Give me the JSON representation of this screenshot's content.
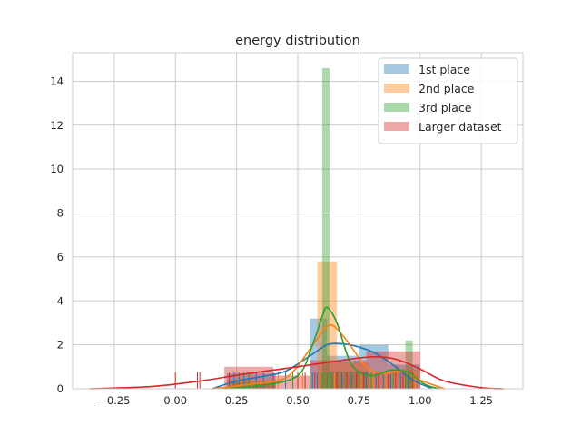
{
  "chart_data": {
    "type": "histogram-kde-rug",
    "title": "energy distribution",
    "xlabel": "",
    "ylabel": "",
    "xlim": [
      -0.42,
      1.42
    ],
    "ylim": [
      0,
      15.3
    ],
    "xticks": [
      -0.25,
      0.0,
      0.25,
      0.5,
      0.75,
      1.0,
      1.25
    ],
    "xtick_labels": [
      "−0.25",
      "0.00",
      "0.25",
      "0.50",
      "0.75",
      "1.00",
      "1.25"
    ],
    "yticks": [
      0,
      2,
      4,
      6,
      8,
      10,
      12,
      14
    ],
    "ytick_labels": [
      "0",
      "2",
      "4",
      "6",
      "8",
      "10",
      "12",
      "14"
    ],
    "grid": true,
    "legend_position": "top-right",
    "series": [
      {
        "name": "1st place",
        "color": "#1f77b4",
        "bins": [
          [
            0.21,
            0.41,
            0.7
          ],
          [
            0.55,
            0.62,
            3.2
          ],
          [
            0.62,
            0.75,
            1.5
          ],
          [
            0.75,
            0.87,
            2.0
          ],
          [
            0.87,
            1.0,
            1.1
          ]
        ],
        "kde": [
          [
            0.15,
            0.0
          ],
          [
            0.25,
            0.35
          ],
          [
            0.35,
            0.55
          ],
          [
            0.45,
            0.8
          ],
          [
            0.55,
            1.5
          ],
          [
            0.62,
            2.0
          ],
          [
            0.68,
            2.05
          ],
          [
            0.75,
            1.9
          ],
          [
            0.82,
            1.6
          ],
          [
            0.9,
            1.0
          ],
          [
            0.97,
            0.4
          ],
          [
            1.05,
            0.0
          ]
        ],
        "rug": [
          0.24,
          0.26,
          0.28,
          0.3,
          0.33,
          0.36,
          0.45,
          0.5,
          0.56,
          0.58,
          0.6,
          0.62,
          0.64,
          0.68,
          0.72,
          0.78,
          0.82,
          0.85,
          0.88,
          0.92,
          0.95
        ]
      },
      {
        "name": "2nd place",
        "color": "#ff7f0e",
        "bins": [
          [
            0.21,
            0.39,
            0.4
          ],
          [
            0.58,
            0.66,
            5.8
          ],
          [
            0.66,
            0.79,
            1.2
          ],
          [
            0.79,
            0.89,
            0.7
          ],
          [
            0.89,
            1.0,
            0.9
          ]
        ],
        "kde": [
          [
            0.15,
            0.0
          ],
          [
            0.3,
            0.2
          ],
          [
            0.45,
            0.5
          ],
          [
            0.55,
            1.8
          ],
          [
            0.6,
            2.6
          ],
          [
            0.64,
            2.9
          ],
          [
            0.7,
            2.2
          ],
          [
            0.78,
            1.0
          ],
          [
            0.85,
            0.7
          ],
          [
            0.93,
            0.8
          ],
          [
            1.0,
            0.4
          ],
          [
            1.1,
            0.0
          ]
        ],
        "rug": [
          0.27,
          0.31,
          0.42,
          0.52,
          0.57,
          0.59,
          0.61,
          0.63,
          0.65,
          0.7,
          0.76,
          0.81,
          0.86,
          0.9,
          0.94,
          0.98
        ]
      },
      {
        "name": "3rd place",
        "color": "#2ca02c",
        "bins": [
          [
            0.23,
            0.41,
            0.3
          ],
          [
            0.6,
            0.63,
            14.6
          ],
          [
            0.63,
            0.79,
            0.8
          ],
          [
            0.94,
            0.97,
            2.2
          ]
        ],
        "kde": [
          [
            0.2,
            0.0
          ],
          [
            0.35,
            0.15
          ],
          [
            0.5,
            0.6
          ],
          [
            0.56,
            2.0
          ],
          [
            0.6,
            3.3
          ],
          [
            0.62,
            3.7
          ],
          [
            0.66,
            3.0
          ],
          [
            0.72,
            1.1
          ],
          [
            0.8,
            0.6
          ],
          [
            0.88,
            0.85
          ],
          [
            0.95,
            0.75
          ],
          [
            1.02,
            0.2
          ],
          [
            1.08,
            0.0
          ]
        ],
        "rug": [
          0.3,
          0.48,
          0.55,
          0.6,
          0.61,
          0.62,
          0.63,
          0.64,
          0.74,
          0.8,
          0.89,
          0.94,
          0.96
        ]
      },
      {
        "name": "Larger dataset",
        "color": "#d62728",
        "bins": [
          [
            0.2,
            0.4,
            1.0
          ],
          [
            0.4,
            0.55,
            0.6
          ],
          [
            0.55,
            0.78,
            1.3
          ],
          [
            0.78,
            1.0,
            1.7
          ]
        ],
        "kde": [
          [
            -0.35,
            0.0
          ],
          [
            -0.1,
            0.1
          ],
          [
            0.1,
            0.35
          ],
          [
            0.3,
            0.7
          ],
          [
            0.5,
            1.0
          ],
          [
            0.65,
            1.25
          ],
          [
            0.8,
            1.45
          ],
          [
            0.9,
            1.35
          ],
          [
            1.0,
            0.9
          ],
          [
            1.1,
            0.35
          ],
          [
            1.25,
            0.05
          ],
          [
            1.34,
            0.0
          ]
        ],
        "rug": [
          0.0,
          0.09,
          0.1,
          0.22,
          0.35,
          0.4,
          0.5,
          0.53,
          0.57,
          0.66,
          0.7,
          0.74,
          0.77,
          0.83,
          0.87,
          0.9,
          0.93,
          0.97
        ]
      }
    ]
  }
}
